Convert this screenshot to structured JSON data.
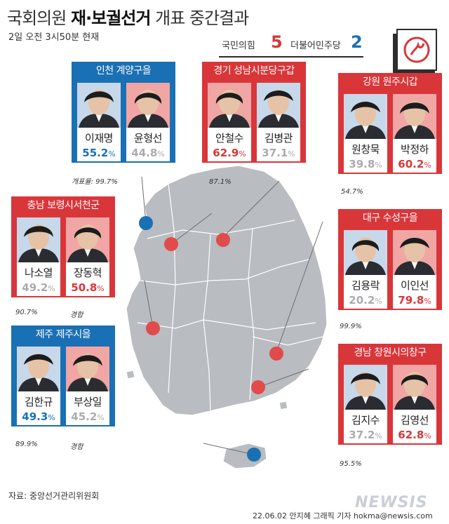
{
  "header": {
    "title_pre": "국회의원 ",
    "title_bold": "재·보궐선거",
    "title_post": " 개표 중간결과",
    "subtitle": "2일 오전  3시50분  현재"
  },
  "tally": {
    "party_a": "국민의힘",
    "party_a_seats": "5",
    "party_b": "더불어민주당",
    "party_b_seats": "2"
  },
  "colors": {
    "red": "#d9363a",
    "blue": "#1a70b4",
    "gray": "#a9abae",
    "map": "#b9bcc0"
  },
  "districts": [
    {
      "region": "인천 계양구을",
      "color": "blue",
      "candidates": [
        {
          "name": "이재명",
          "pct": "55.2",
          "unit": "%",
          "win": true,
          "party": "blue"
        },
        {
          "name": "윤형선",
          "pct": "44.8",
          "unit": "%",
          "win": false,
          "party": "red"
        }
      ],
      "note": "개표율: 99.7%",
      "note_extra": ""
    },
    {
      "region": "경기 성남시분당구갑",
      "color": "red",
      "candidates": [
        {
          "name": "안철수",
          "pct": "62.9",
          "unit": "%",
          "win": true,
          "party": "red"
        },
        {
          "name": "김병관",
          "pct": "37.1",
          "unit": "%",
          "win": false,
          "party": "blue"
        }
      ],
      "note": "87.1%",
      "note_extra": ""
    },
    {
      "region": "강원 원주시갑",
      "color": "red",
      "candidates": [
        {
          "name": "원창묵",
          "pct": "39.8",
          "unit": "%",
          "win": false,
          "party": "blue"
        },
        {
          "name": "박정하",
          "pct": "60.2",
          "unit": "%",
          "win": true,
          "party": "red"
        }
      ],
      "note": "54.7%",
      "note_extra": ""
    },
    {
      "region": "충남 보령시서천군",
      "color": "red",
      "candidates": [
        {
          "name": "나소열",
          "pct": "49.2",
          "unit": "%",
          "win": false,
          "party": "blue"
        },
        {
          "name": "장동혁",
          "pct": "50.8",
          "unit": "%",
          "win": true,
          "party": "red"
        }
      ],
      "note": "90.7%",
      "note_extra": "경합"
    },
    {
      "region": "대구 수성구을",
      "color": "red",
      "candidates": [
        {
          "name": "김용락",
          "pct": "20.2",
          "unit": "%",
          "win": false,
          "party": "blue"
        },
        {
          "name": "이인선",
          "pct": "79.8",
          "unit": "%",
          "win": true,
          "party": "red"
        }
      ],
      "note": "99.9%",
      "note_extra": ""
    },
    {
      "region": "제주 제주시을",
      "color": "blue",
      "candidates": [
        {
          "name": "김한규",
          "pct": "49.3",
          "unit": "%",
          "win": true,
          "party": "blue"
        },
        {
          "name": "부상일",
          "pct": "45.2",
          "unit": "%",
          "win": false,
          "party": "red"
        }
      ],
      "note": "89.9%",
      "note_extra": "경합"
    },
    {
      "region": "경남 창원시의창구",
      "color": "red",
      "candidates": [
        {
          "name": "김지수",
          "pct": "37.2",
          "unit": "%",
          "win": false,
          "party": "blue"
        },
        {
          "name": "김영선",
          "pct": "62.8",
          "unit": "%",
          "win": true,
          "party": "red"
        }
      ],
      "note": "95.5%",
      "note_extra": ""
    }
  ],
  "footer": {
    "source": "자료: 중앙선거관리위원회",
    "credit": "22.06.02  안지혜  그래픽  기자  hokma@newsis.com",
    "logo": "NEWSIS"
  }
}
